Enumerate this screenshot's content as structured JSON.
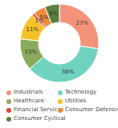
{
  "chart_data": {
    "type": "pie",
    "donut": true,
    "categories": [
      "Industrials",
      "Technology",
      "Healthcare",
      "Utilities",
      "Financial Services",
      "Consumer Defensive",
      "Consumer Cyclical"
    ],
    "values": [
      27,
      36,
      13,
      11,
      1,
      5,
      6
    ],
    "value_labels": [
      "27%",
      "36%",
      "13%",
      "11%",
      "1%",
      "5%",
      "6%"
    ],
    "colors": [
      "#f4937a",
      "#6fd3c0",
      "#8aab5c",
      "#f5c22a",
      "#e0412f",
      "#f08a3c",
      "#5a7f3f"
    ],
    "data_labels": true,
    "legend": "bottom"
  }
}
